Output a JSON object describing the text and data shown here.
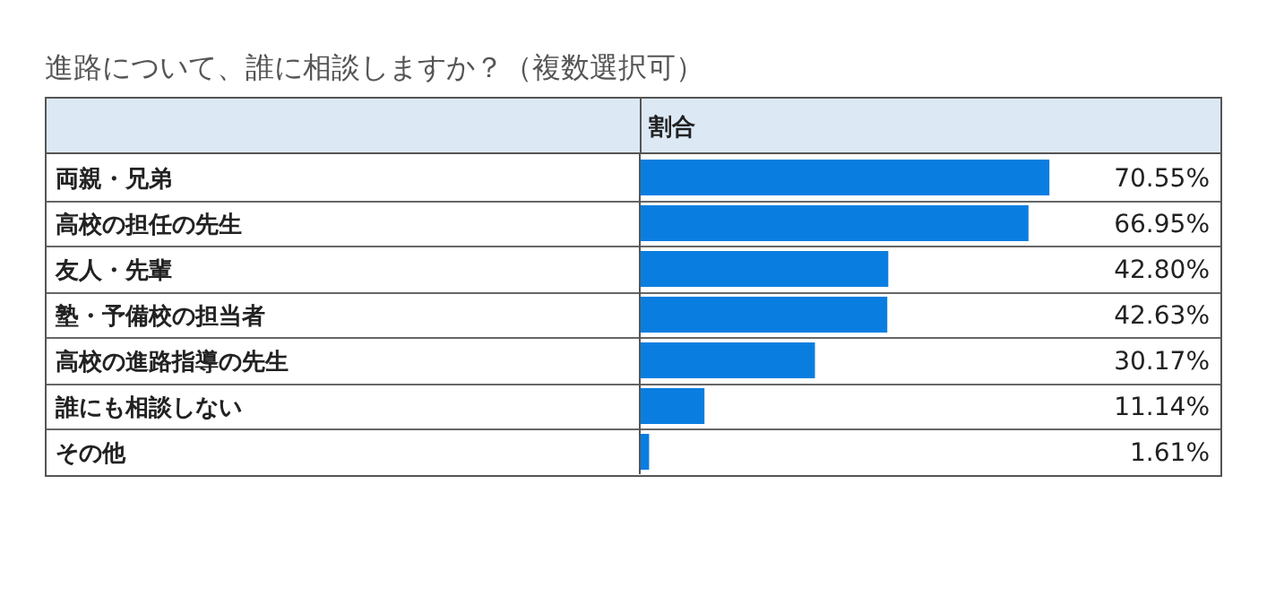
{
  "chart_data": {
    "type": "bar",
    "orientation": "horizontal",
    "title": "進路について、誰に相談しますか？（複数選択可）",
    "xlabel": "割合",
    "categories": [
      "両親・兄弟",
      "高校の担任の先生",
      "友人・先輩",
      "塾・予備校の担当者",
      "高校の進路指導の先生",
      "誰にも相談しない",
      "その他"
    ],
    "values": [
      70.55,
      66.95,
      42.8,
      42.63,
      30.17,
      11.14,
      1.61
    ],
    "value_labels": [
      "70.55%",
      "66.95%",
      "42.80%",
      "42.63%",
      "30.17%",
      "11.14%",
      "1.61%"
    ],
    "color": "#0a7ee0",
    "xlim": [
      0,
      100
    ]
  }
}
